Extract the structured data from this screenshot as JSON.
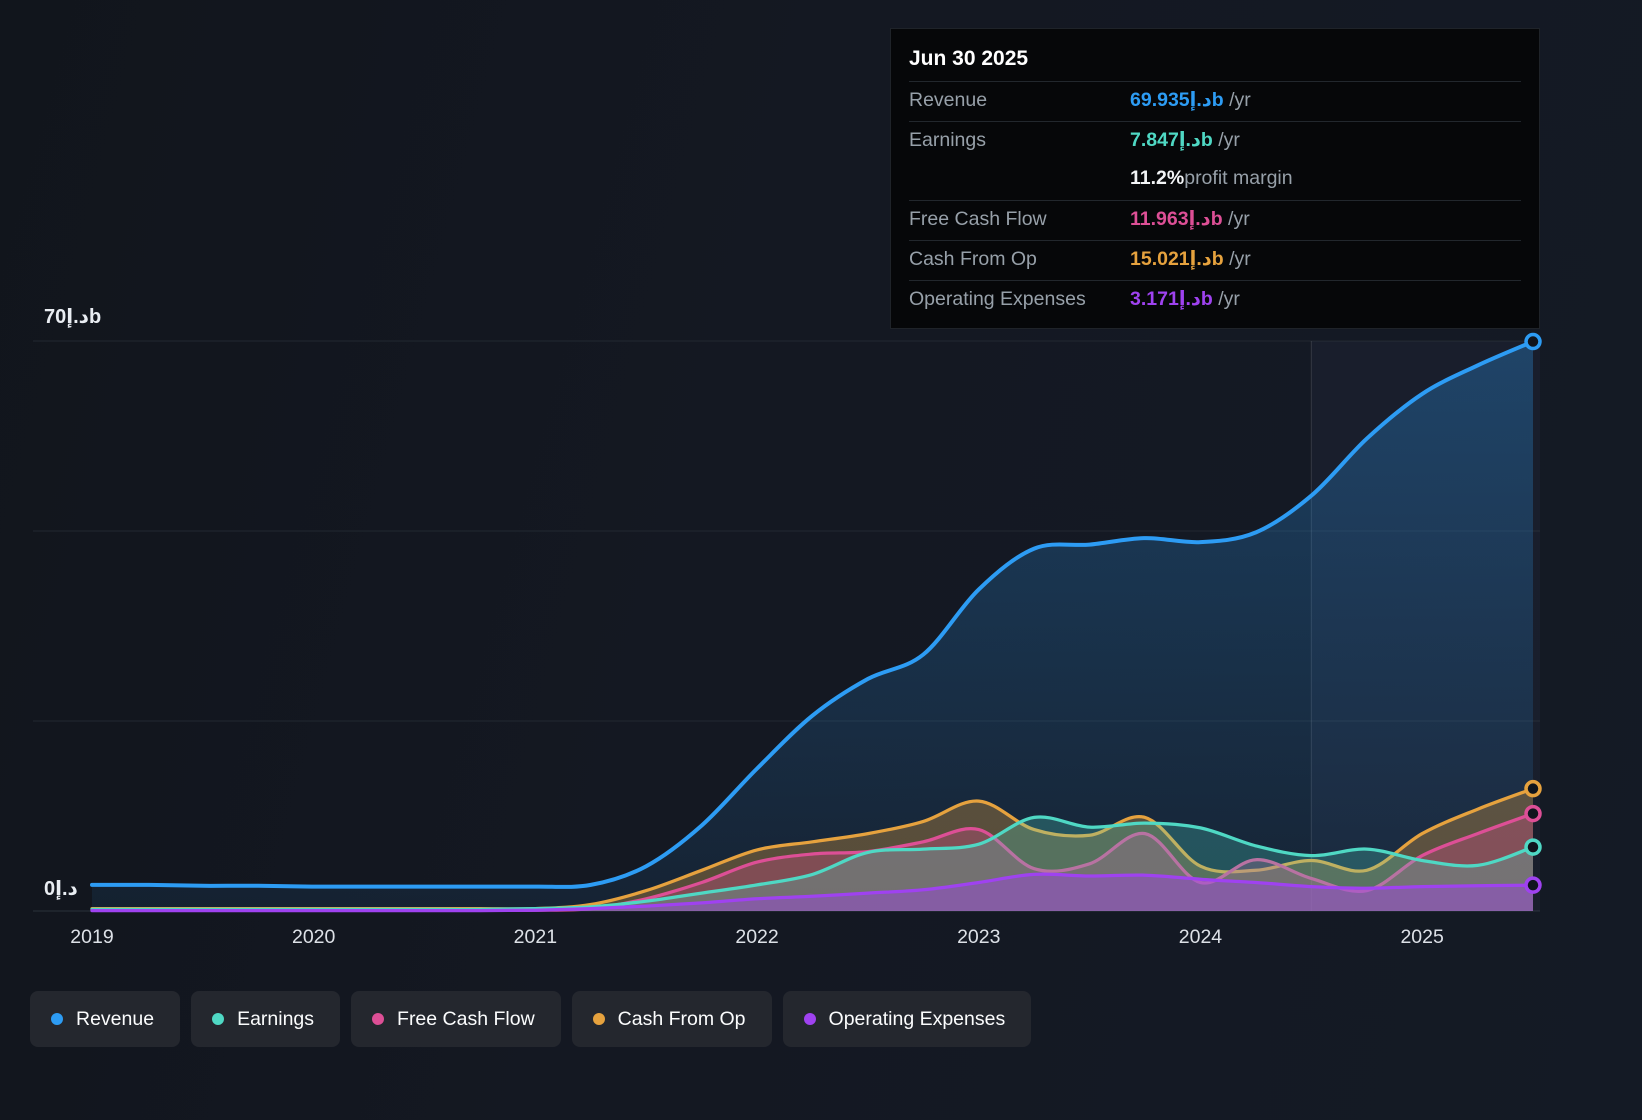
{
  "colors": {
    "background": "#151a22",
    "revenue": "#2d9cf4",
    "earnings": "#4fd8c4",
    "free_cash_flow": "#dd4f96",
    "cash_from_op": "#e6a23e",
    "operating_expenses": "#9f42f0",
    "grid": "#222831",
    "tooltip_bg": "#060709",
    "pill_bg": "#24272e"
  },
  "tooltip": {
    "title": "Jun 30 2025",
    "rows": [
      {
        "label": "Revenue",
        "value": "69.935د.إb",
        "unit": " /yr",
        "color_key": "revenue"
      },
      {
        "label": "Earnings",
        "value": "7.847د.إb",
        "unit": " /yr",
        "color_key": "earnings",
        "sub_bold": "11.2%",
        "sub_text": " profit margin"
      },
      {
        "label": "Free Cash Flow",
        "value": "11.963د.إb",
        "unit": " /yr",
        "color_key": "free_cash_flow"
      },
      {
        "label": "Cash From Op",
        "value": "15.021د.إb",
        "unit": " /yr",
        "color_key": "cash_from_op"
      },
      {
        "label": "Operating Expenses",
        "value": "3.171د.إb",
        "unit": " /yr",
        "color_key": "operating_expenses"
      }
    ]
  },
  "axis": {
    "y_top_label": "70د.إb",
    "y_zero_label": "0د.إ",
    "x_ticks": [
      "2019",
      "2020",
      "2021",
      "2022",
      "2023",
      "2024",
      "2025"
    ]
  },
  "legend": [
    {
      "label": "Revenue",
      "color_key": "revenue"
    },
    {
      "label": "Earnings",
      "color_key": "earnings"
    },
    {
      "label": "Free Cash Flow",
      "color_key": "free_cash_flow"
    },
    {
      "label": "Cash From Op",
      "color_key": "cash_from_op"
    },
    {
      "label": "Operating Expenses",
      "color_key": "operating_expenses"
    }
  ],
  "chart_data": {
    "type": "area",
    "title": "",
    "xlabel": "",
    "ylabel": "AED billions",
    "ylim": [
      0,
      70
    ],
    "x_range": [
      2019,
      2025.5
    ],
    "grid_values": [
      0,
      23.33,
      46.67,
      70
    ],
    "marker_x": 2024.5,
    "legend_position": "bottom",
    "x": [
      2019,
      2019.25,
      2019.5,
      2019.75,
      2020,
      2020.25,
      2020.5,
      2020.75,
      2021,
      2021.25,
      2021.5,
      2021.75,
      2022,
      2022.25,
      2022.5,
      2022.75,
      2023,
      2023.25,
      2023.5,
      2023.75,
      2024,
      2024.25,
      2024.5,
      2024.75,
      2025,
      2025.25,
      2025.5
    ],
    "draw_order": [
      "Revenue",
      "Cash From Op",
      "Free Cash Flow",
      "Earnings",
      "Operating Expenses"
    ],
    "series": [
      {
        "name": "Revenue",
        "color_key": "revenue",
        "fill_opacity": 1,
        "values": [
          3.2,
          3.2,
          3.1,
          3.1,
          3.0,
          3.0,
          3.0,
          3.0,
          3.0,
          3.2,
          5.5,
          10.5,
          17.5,
          24,
          28.5,
          31.5,
          39.5,
          44.5,
          45,
          45.8,
          45.3,
          46.5,
          51,
          58,
          63.5,
          67,
          69.935
        ]
      },
      {
        "name": "Earnings",
        "color_key": "earnings",
        "fill_opacity": 0.26,
        "values": [
          0.2,
          0.2,
          0.2,
          0.2,
          0.2,
          0.2,
          0.2,
          0.2,
          0.3,
          0.5,
          1.2,
          2.2,
          3.2,
          4.5,
          7.2,
          7.6,
          8.2,
          11.5,
          10.3,
          10.8,
          10.2,
          8.0,
          6.8,
          7.6,
          6.2,
          5.6,
          7.847
        ]
      },
      {
        "name": "Free Cash Flow",
        "color_key": "free_cash_flow",
        "fill_opacity": 0.3,
        "values": [
          0.1,
          0.1,
          0.1,
          0.1,
          0.1,
          0.1,
          0.1,
          0.1,
          0.1,
          0.3,
          1.5,
          3.5,
          6.0,
          7.0,
          7.3,
          8.5,
          10.0,
          5.2,
          5.8,
          9.5,
          3.5,
          6.3,
          4.0,
          2.5,
          6.8,
          9.5,
          11.963
        ]
      },
      {
        "name": "Cash From Op",
        "color_key": "cash_from_op",
        "fill_opacity": 0.32,
        "values": [
          0.3,
          0.3,
          0.3,
          0.3,
          0.3,
          0.3,
          0.3,
          0.3,
          0.3,
          0.8,
          2.5,
          5.0,
          7.5,
          8.5,
          9.5,
          11.0,
          13.5,
          10.0,
          9.3,
          11.5,
          5.5,
          5.0,
          6.2,
          5.0,
          9.5,
          12.5,
          15.021
        ]
      },
      {
        "name": "Operating Expenses",
        "color_key": "operating_expenses",
        "fill_opacity": 0.4,
        "values": [
          0.05,
          0.05,
          0.05,
          0.05,
          0.05,
          0.05,
          0.05,
          0.05,
          0.1,
          0.3,
          0.6,
          1.0,
          1.5,
          1.8,
          2.2,
          2.6,
          3.5,
          4.5,
          4.3,
          4.4,
          3.9,
          3.5,
          3.0,
          2.8,
          3.0,
          3.1,
          3.171
        ]
      }
    ]
  }
}
